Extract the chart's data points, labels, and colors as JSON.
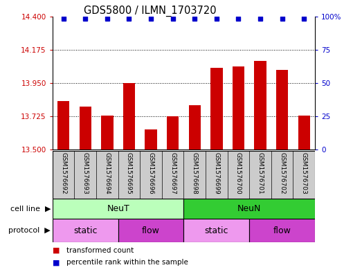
{
  "title": "GDS5800 / ILMN_1703720",
  "samples": [
    "GSM1576692",
    "GSM1576693",
    "GSM1576694",
    "GSM1576695",
    "GSM1576696",
    "GSM1576697",
    "GSM1576698",
    "GSM1576699",
    "GSM1576700",
    "GSM1576701",
    "GSM1576702",
    "GSM1576703"
  ],
  "bar_values": [
    13.83,
    13.79,
    13.73,
    13.95,
    13.635,
    13.725,
    13.8,
    14.05,
    14.06,
    14.1,
    14.04,
    13.73
  ],
  "bar_color": "#cc0000",
  "dot_color": "#0000cc",
  "ylim_left": [
    13.5,
    14.4
  ],
  "ylim_right": [
    0,
    100
  ],
  "yticks_left": [
    13.5,
    13.725,
    13.95,
    14.175,
    14.4
  ],
  "yticks_right": [
    0,
    25,
    50,
    75,
    100
  ],
  "hlines": [
    13.725,
    13.95,
    14.175
  ],
  "cell_line_groups": [
    {
      "label": "NeuT",
      "start": 0,
      "end": 6,
      "color": "#bbffbb"
    },
    {
      "label": "NeuN",
      "start": 6,
      "end": 12,
      "color": "#33cc33"
    }
  ],
  "protocol_segments": [
    {
      "label": "static",
      "start": 0,
      "end": 3,
      "color": "#ee99ee"
    },
    {
      "label": "flow",
      "start": 3,
      "end": 6,
      "color": "#cc44cc"
    },
    {
      "label": "static",
      "start": 6,
      "end": 9,
      "color": "#ee99ee"
    },
    {
      "label": "flow",
      "start": 9,
      "end": 12,
      "color": "#cc44cc"
    }
  ],
  "background_color": "#ffffff",
  "tick_color_left": "#cc0000",
  "tick_color_right": "#0000cc",
  "bar_width": 0.55,
  "sample_box_color": "#cccccc",
  "cell_line_label": "cell line",
  "protocol_label": "protocol"
}
